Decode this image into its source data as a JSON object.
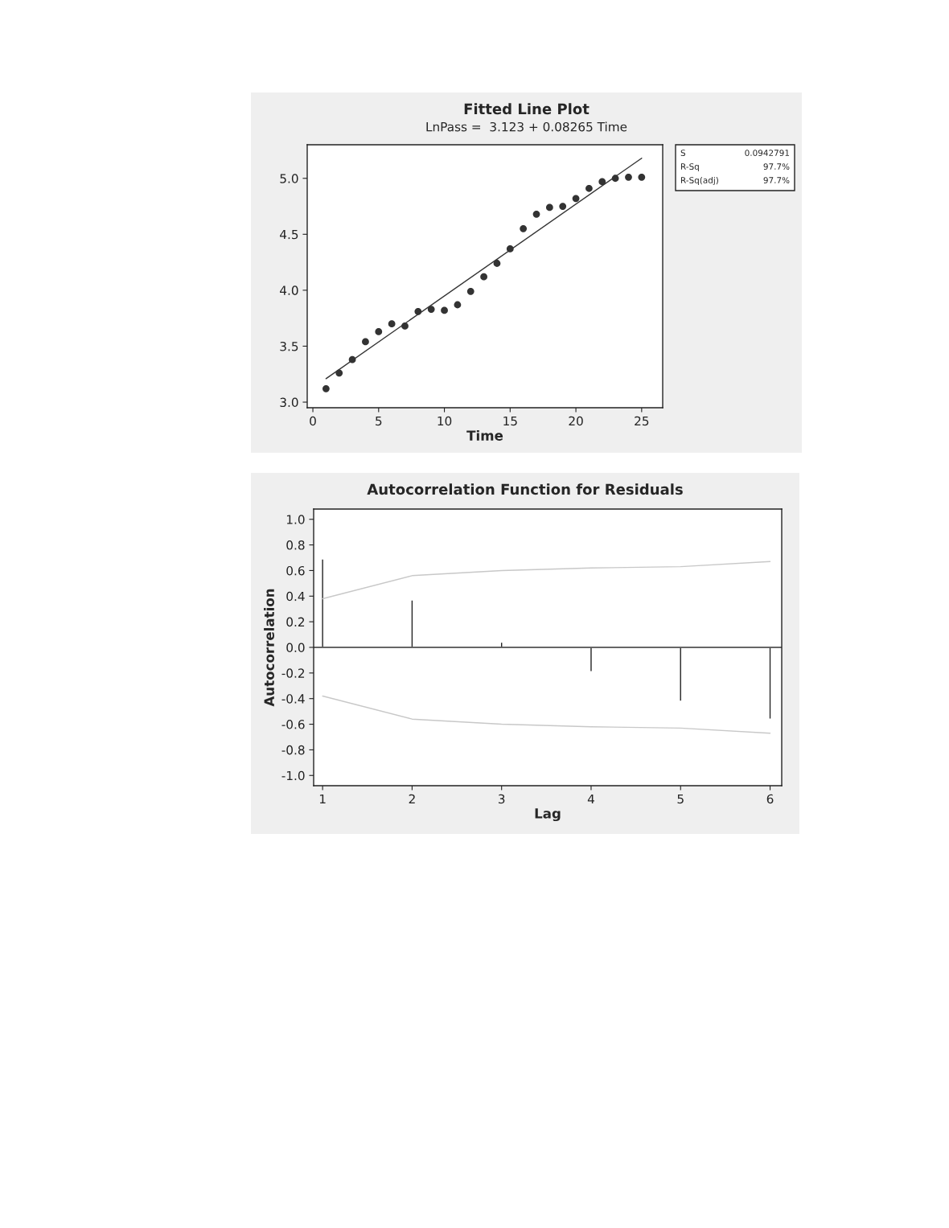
{
  "chart_data": [
    {
      "type": "scatter",
      "title": "Fitted Line Plot",
      "subtitle": "LnPass =  3.123 + 0.08265 Time",
      "xlabel": "Time",
      "xlim": [
        -0.43,
        26.6
      ],
      "xticks": [
        0,
        5,
        10,
        15,
        20,
        25
      ],
      "ylim": [
        2.95,
        5.3
      ],
      "yticks": [
        {
          "value": 3.0,
          "label": "3.0"
        },
        {
          "value": 3.5,
          "label": "3.5"
        },
        {
          "value": 4.0,
          "label": "4.0"
        },
        {
          "value": 4.5,
          "label": "4.5"
        },
        {
          "value": 5.0,
          "label": "5.0"
        }
      ],
      "grid": false,
      "series": [
        {
          "color": "#333333",
          "marker": "circle",
          "x": [
            1,
            2,
            3,
            4,
            5,
            6,
            7,
            8,
            9,
            10,
            11,
            12,
            13,
            14,
            15,
            16,
            17,
            18,
            19,
            20,
            21,
            22,
            23,
            24,
            25
          ],
          "values": [
            3.12,
            3.26,
            3.38,
            3.54,
            3.63,
            3.7,
            3.68,
            3.81,
            3.83,
            3.82,
            3.87,
            3.99,
            4.12,
            4.24,
            4.37,
            4.55,
            4.68,
            4.74,
            4.75,
            4.82,
            4.91,
            4.97,
            5.0,
            5.01,
            5.01
          ]
        },
        {
          "type": "line",
          "color": "#333333",
          "x": [
            1,
            25
          ],
          "values": [
            3.21,
            5.18
          ],
          "line_style": "solid"
        }
      ],
      "annotations": [
        "S",
        "0.0942791",
        "R-Sq",
        "97.7%",
        "R-Sq(adj)",
        "97.7%"
      ]
    },
    {
      "type": "bar",
      "title": "Autocorrelation Function for Residuals",
      "xlabel": "Lag",
      "ylabel": "Autocorrelation",
      "xlim": [
        0.9,
        6.13
      ],
      "xticks": [
        1,
        2,
        3,
        4,
        5,
        6
      ],
      "ylim": [
        -1.08,
        1.08
      ],
      "yticks": [
        {
          "value": -1.0,
          "label": "-1.0"
        },
        {
          "value": -0.8,
          "label": "-0.8"
        },
        {
          "value": -0.6,
          "label": "-0.6"
        },
        {
          "value": -0.4,
          "label": "-0.4"
        },
        {
          "value": -0.2,
          "label": "-0.2"
        },
        {
          "value": 0.0,
          "label": "0.0"
        },
        {
          "value": 0.2,
          "label": "0.2"
        },
        {
          "value": 0.4,
          "label": "0.4"
        },
        {
          "value": 0.6,
          "label": "0.6"
        },
        {
          "value": 0.8,
          "label": "0.8"
        },
        {
          "value": 1.0,
          "label": "1.0"
        }
      ],
      "grid": false,
      "ref_lines": [
        {
          "axis": "y",
          "value": 0,
          "color": "#333333"
        }
      ],
      "series": [
        {
          "color": "#222222",
          "x": [
            1,
            2,
            3,
            4,
            5,
            6
          ],
          "values": [
            0.69,
            0.37,
            0.04,
            -0.19,
            -0.42,
            -0.56
          ]
        },
        {
          "type": "line",
          "color": "#c8c8c8",
          "x": [
            1,
            2,
            3,
            4,
            5,
            6
          ],
          "values": [
            0.38,
            0.56,
            0.6,
            0.62,
            0.63,
            0.67
          ]
        },
        {
          "type": "line",
          "color": "#c8c8c8",
          "x": [
            1,
            2,
            3,
            4,
            5,
            6
          ],
          "values": [
            -0.38,
            -0.56,
            -0.6,
            -0.62,
            -0.63,
            -0.67
          ]
        }
      ]
    }
  ]
}
